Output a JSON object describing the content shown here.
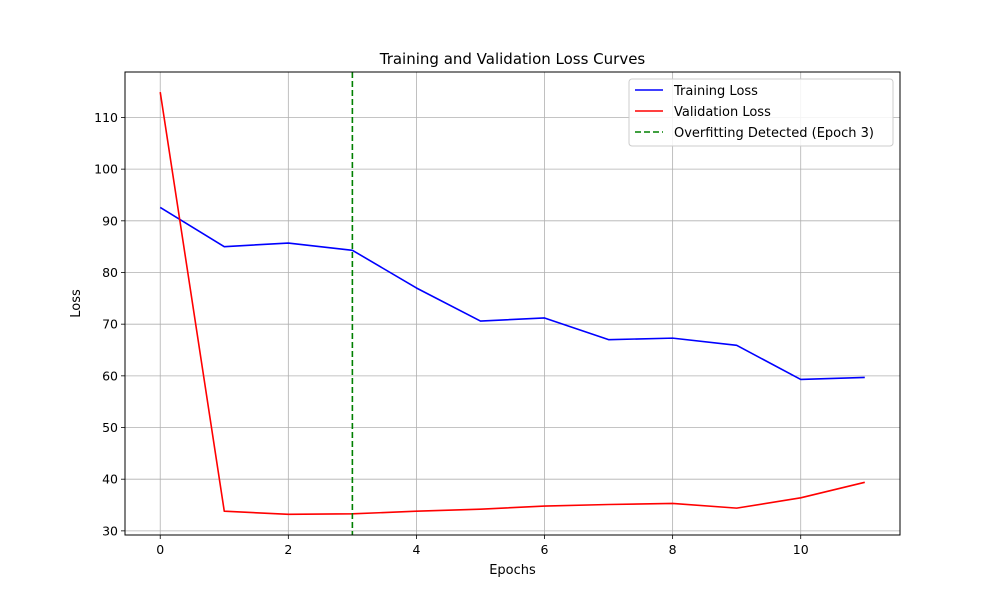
{
  "chart_data": {
    "type": "line",
    "title": "Training and Validation Loss Curves",
    "xlabel": "Epochs",
    "ylabel": "Loss",
    "xlim": [
      -0.55,
      11.55
    ],
    "ylim": [
      29.2,
      118.8
    ],
    "xticks": [
      0,
      2,
      4,
      6,
      8,
      10
    ],
    "yticks": [
      30,
      40,
      50,
      60,
      70,
      80,
      90,
      100,
      110
    ],
    "grid": true,
    "legend_position": "top-right",
    "x": [
      0,
      1,
      2,
      3,
      4,
      5,
      6,
      7,
      8,
      9,
      10,
      11
    ],
    "series": [
      {
        "name": "Training Loss",
        "color": "#0000ff",
        "style": "solid",
        "values": [
          92.6,
          85.0,
          85.7,
          84.3,
          77.0,
          70.6,
          71.2,
          67.0,
          67.3,
          65.9,
          59.3,
          59.7
        ]
      },
      {
        "name": "Validation Loss",
        "color": "#ff0000",
        "style": "solid",
        "values": [
          114.9,
          33.8,
          33.2,
          33.3,
          33.8,
          34.2,
          34.8,
          35.1,
          35.3,
          34.4,
          36.4,
          39.4
        ]
      }
    ],
    "vline": {
      "name": "Overfitting Detected (Epoch 3)",
      "x": 3,
      "color": "#008000",
      "style": "dashed"
    }
  }
}
